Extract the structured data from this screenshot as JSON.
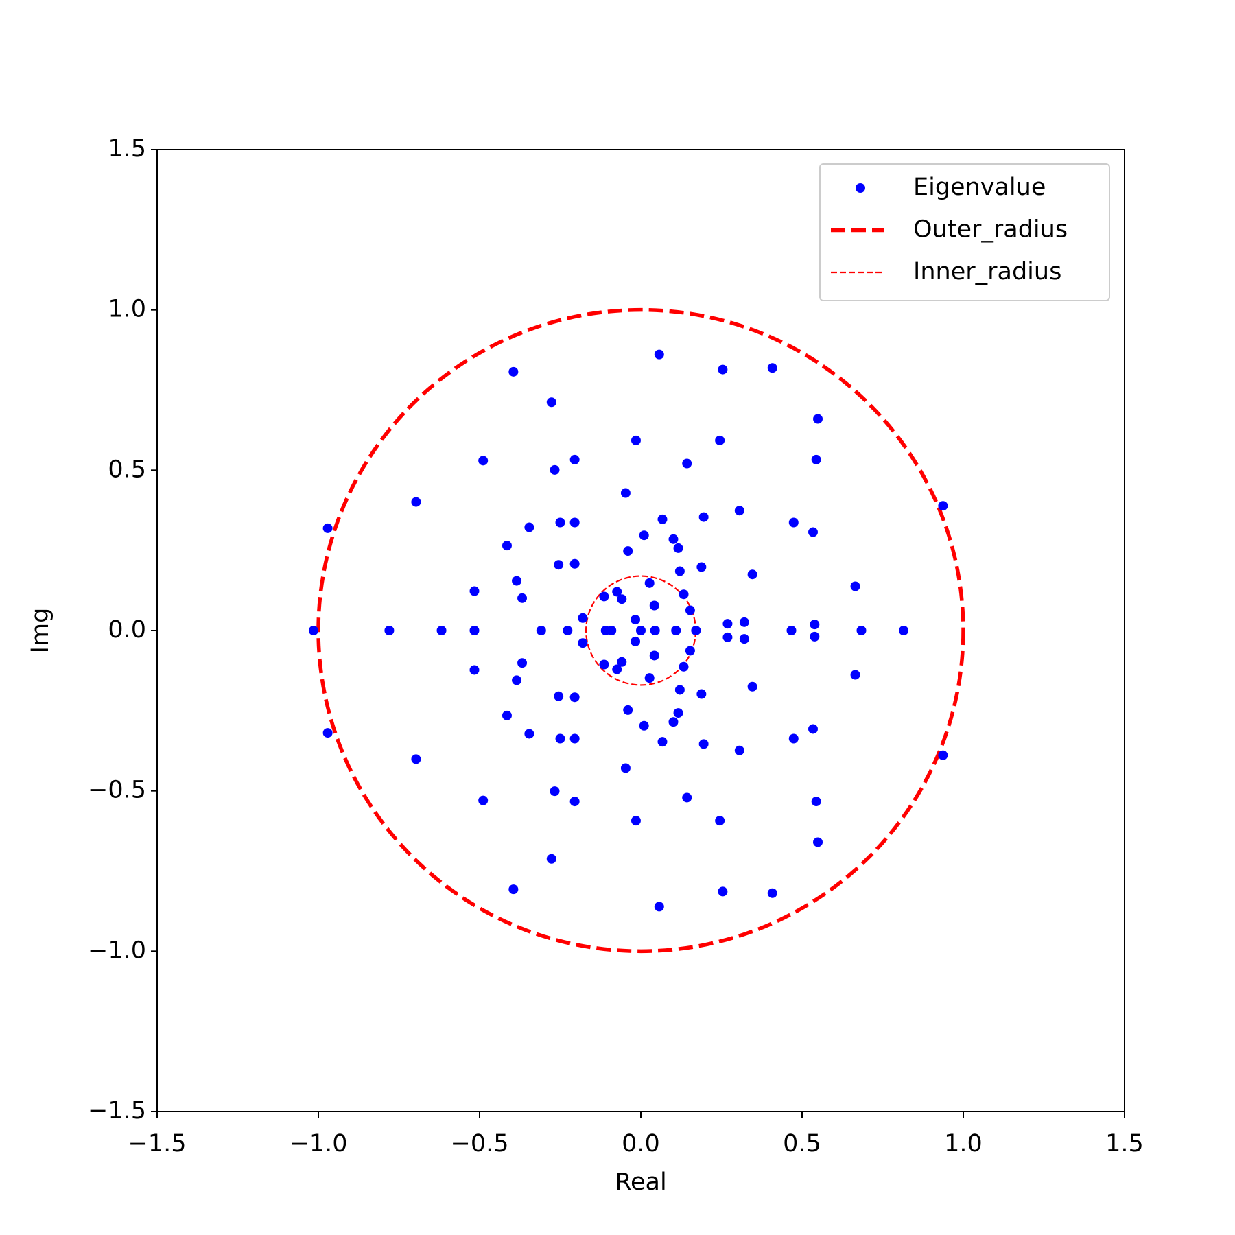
{
  "chart_data": {
    "type": "scatter",
    "xlabel": "Real",
    "ylabel": "Img",
    "xlim": [
      -1.5,
      1.5
    ],
    "ylim": [
      -1.5,
      1.5
    ],
    "xticks": [
      {
        "value": -1.5,
        "label": "−1.5"
      },
      {
        "value": -1.0,
        "label": "−1.0"
      },
      {
        "value": -0.5,
        "label": "−0.5"
      },
      {
        "value": 0,
        "label": "0.0"
      },
      0.5,
      {
        "value": 1,
        "label": "1.0"
      },
      1.5
    ],
    "yticks": [
      {
        "value": -1.5,
        "label": "−1.5"
      },
      {
        "value": -1.0,
        "label": "−1.0"
      },
      {
        "value": -0.5,
        "label": "−0.5"
      },
      {
        "value": 0,
        "label": "0.0"
      },
      0.5,
      {
        "value": 1,
        "label": "1.0"
      },
      1.5
    ],
    "legend": "upper right",
    "series": [
      {
        "name": "Eigenvalue",
        "color": "#0000ff",
        "x": [
          0.057,
          -0.395,
          0.254,
          0.408,
          -0.277,
          0.549,
          -0.015,
          0.245,
          -0.489,
          -0.205,
          0.143,
          0.544,
          -0.267,
          -0.047,
          -0.697,
          0.937,
          0.306,
          -0.971,
          -0.346,
          -0.25,
          -0.205,
          0.195,
          0.067,
          0.474,
          0.534,
          0.01,
          0.101,
          0.116,
          -0.415,
          -0.04,
          -0.255,
          -0.205,
          0.188,
          0.121,
          0.346,
          -0.385,
          0.027,
          -0.516,
          0.665,
          -0.114,
          -0.074,
          0.133,
          -0.368,
          -0.059,
          0.042,
          0.153,
          -0.18,
          -0.017,
          0.269,
          0.321,
          0.539,
          0.057,
          -0.395,
          0.254,
          0.408,
          -0.277,
          0.549,
          -0.015,
          0.245,
          -0.489,
          -0.205,
          0.143,
          0.544,
          -0.267,
          -0.047,
          -0.697,
          0.937,
          0.306,
          -0.971,
          -0.346,
          -0.25,
          -0.205,
          0.195,
          0.067,
          0.474,
          0.534,
          0.01,
          0.101,
          0.116,
          -0.415,
          -0.04,
          -0.255,
          -0.205,
          0.188,
          0.121,
          0.346,
          -0.385,
          0.027,
          -0.516,
          0.665,
          -0.114,
          -0.074,
          0.133,
          -0.368,
          -0.059,
          0.042,
          0.153,
          -0.18,
          -0.017,
          0.269,
          0.321,
          0.539,
          -1.015,
          -0.78,
          -0.618,
          -0.516,
          -0.309,
          -0.227,
          -0.109,
          -0.091,
          0.0,
          0.044,
          0.109,
          0.171,
          0.467,
          0.684,
          0.815
        ],
        "y": [
          0.861,
          0.807,
          0.814,
          0.819,
          0.712,
          0.66,
          0.593,
          0.593,
          0.53,
          0.533,
          0.521,
          0.533,
          0.501,
          0.429,
          0.401,
          0.389,
          0.374,
          0.319,
          0.322,
          0.337,
          0.337,
          0.354,
          0.347,
          0.337,
          0.307,
          0.297,
          0.285,
          0.257,
          0.265,
          0.248,
          0.205,
          0.208,
          0.198,
          0.185,
          0.175,
          0.155,
          0.148,
          0.123,
          0.138,
          0.106,
          0.121,
          0.113,
          0.101,
          0.098,
          0.078,
          0.063,
          0.039,
          0.034,
          0.021,
          0.026,
          0.019,
          -0.861,
          -0.807,
          -0.814,
          -0.819,
          -0.712,
          -0.66,
          -0.593,
          -0.593,
          -0.53,
          -0.533,
          -0.521,
          -0.533,
          -0.501,
          -0.429,
          -0.401,
          -0.389,
          -0.374,
          -0.319,
          -0.322,
          -0.337,
          -0.337,
          -0.354,
          -0.347,
          -0.337,
          -0.307,
          -0.297,
          -0.285,
          -0.257,
          -0.265,
          -0.248,
          -0.205,
          -0.208,
          -0.198,
          -0.185,
          -0.175,
          -0.155,
          -0.148,
          -0.123,
          -0.138,
          -0.106,
          -0.121,
          -0.113,
          -0.101,
          -0.098,
          -0.078,
          -0.063,
          -0.039,
          -0.034,
          -0.021,
          -0.026,
          -0.019,
          0,
          0,
          0,
          0,
          0,
          0,
          0,
          0,
          0,
          0,
          0,
          0,
          0,
          0,
          0
        ]
      }
    ],
    "circles": [
      {
        "name": "Outer_radius",
        "center": [
          0,
          0
        ],
        "radius": 1,
        "color": "#ff0000",
        "style": "thick-dashed"
      },
      {
        "name": "Inner_radius",
        "center": [
          0,
          0
        ],
        "radius": 0.17,
        "color": "#ff0000",
        "style": "thin-dashed"
      }
    ]
  }
}
